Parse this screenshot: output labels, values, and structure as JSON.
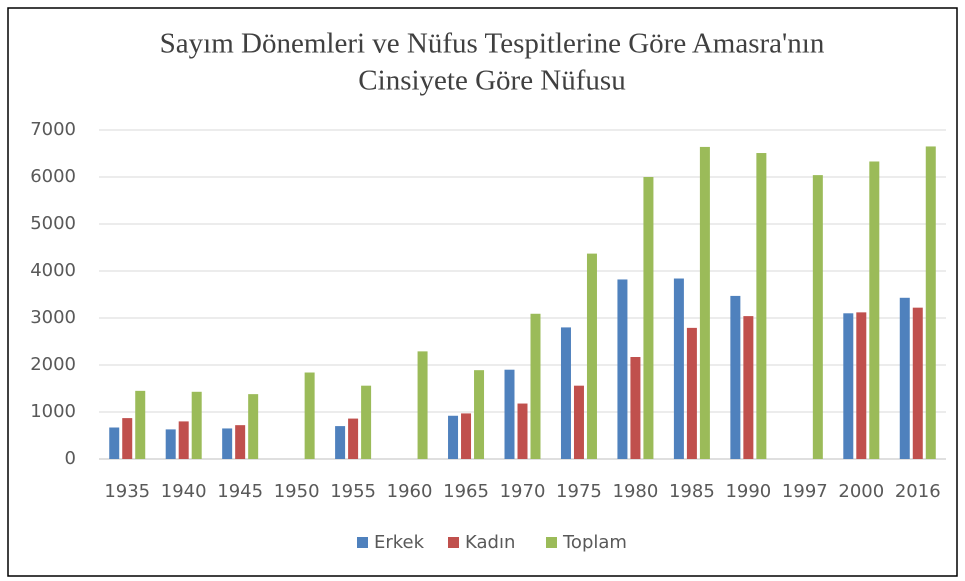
{
  "chart_data": {
    "type": "bar",
    "title": [
      "Sayım Dönemleri ve Nüfus Tespitlerine Göre Amasra'nın",
      "Cinsiyete Göre Nüfusu"
    ],
    "categories": [
      "1935",
      "1940",
      "1945",
      "1950",
      "1955",
      "1960",
      "1965",
      "1970",
      "1975",
      "1980",
      "1985",
      "1990",
      "1997",
      "2000",
      "2016"
    ],
    "series": [
      {
        "name": "Erkek",
        "color": "#4f81bd",
        "values": [
          670,
          630,
          650,
          null,
          700,
          null,
          920,
          1900,
          2800,
          3820,
          3840,
          3470,
          null,
          3100,
          3430
        ]
      },
      {
        "name": "Kadın",
        "color": "#c0504d",
        "values": [
          870,
          800,
          720,
          null,
          860,
          null,
          970,
          1180,
          1560,
          2170,
          2790,
          3040,
          null,
          3120,
          3220
        ]
      },
      {
        "name": "Toplam",
        "color": "#9bbb59",
        "values": [
          1450,
          1430,
          1380,
          1840,
          1560,
          2290,
          1890,
          3090,
          4370,
          6000,
          6640,
          6510,
          6040,
          6330,
          6650
        ]
      }
    ],
    "ylim": [
      0,
      7000
    ],
    "yticks": [
      0,
      1000,
      2000,
      3000,
      4000,
      5000,
      6000,
      7000
    ],
    "grid": true,
    "legend": "bottom"
  }
}
